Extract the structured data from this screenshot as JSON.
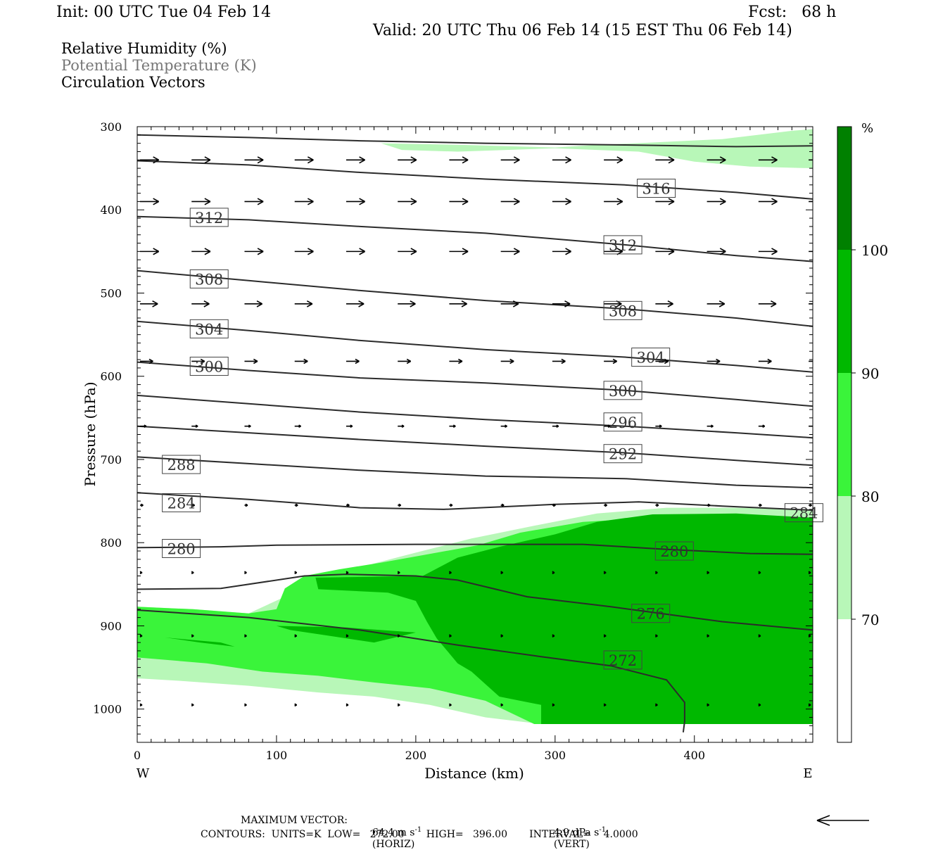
{
  "header": {
    "init": "Init: 00 UTC Tue 04 Feb 14",
    "fcst": "Fcst:   68 h",
    "valid": "Valid: 20 UTC Thu 06 Feb 14 (15 EST Thu 06 Feb 14)"
  },
  "fields": {
    "rh": "Relative Humidity (%)",
    "theta": "Potential Temperature (K)",
    "vectors": "Circulation Vectors"
  },
  "colors": {
    "rh_70_80": "#b8f7b8",
    "rh_80_90": "#3af43a",
    "rh_90_100": "#00b800",
    "rh_100": "#008000",
    "contour": "#2b2b2b"
  },
  "chart_data": {
    "type": "contour",
    "xlabel": "Distance (km)",
    "ylabel": "Pressure (hPa)",
    "xlim": [
      0,
      485
    ],
    "ylim": [
      300,
      1040
    ],
    "y_inverted": true,
    "x_ticks": [
      "0",
      "100",
      "200",
      "300",
      "400"
    ],
    "x_tick_values": [
      0,
      100,
      200,
      300,
      400
    ],
    "y_ticks": [
      "300",
      "400",
      "500",
      "600",
      "700",
      "800",
      "900",
      "1000"
    ],
    "y_tick_values": [
      300,
      400,
      500,
      600,
      700,
      800,
      900,
      1000
    ],
    "x_end_labels": {
      "west": "W",
      "east": "E"
    },
    "colorbar": {
      "unit": "%",
      "levels": [
        70,
        80,
        90,
        100
      ],
      "level_labels": [
        "70",
        "80",
        "90",
        "100"
      ]
    },
    "rh_regions": [
      {
        "level": "70-80",
        "points": [
          [
            175,
            320
          ],
          [
            235,
            322
          ],
          [
            300,
            325
          ],
          [
            330,
            322
          ],
          [
            370,
            319
          ],
          [
            420,
            315
          ],
          [
            470,
            305
          ],
          [
            485,
            303
          ],
          [
            485,
            350
          ],
          [
            440,
            348
          ],
          [
            400,
            342
          ],
          [
            360,
            330
          ],
          [
            300,
            326
          ],
          [
            230,
            330
          ],
          [
            190,
            328
          ]
        ]
      },
      {
        "level": "70-80",
        "points": [
          [
            0,
            877
          ],
          [
            40,
            880
          ],
          [
            80,
            885
          ],
          [
            110,
            862
          ],
          [
            140,
            840
          ],
          [
            170,
            825
          ],
          [
            200,
            812
          ],
          [
            240,
            795
          ],
          [
            290,
            778
          ],
          [
            330,
            765
          ],
          [
            380,
            758
          ],
          [
            430,
            758
          ],
          [
            485,
            760
          ],
          [
            485,
            1018
          ],
          [
            420,
            1018
          ],
          [
            360,
            1018
          ],
          [
            290,
            1018
          ],
          [
            250,
            1010
          ],
          [
            210,
            995
          ],
          [
            170,
            985
          ],
          [
            130,
            980
          ],
          [
            80,
            972
          ],
          [
            30,
            966
          ],
          [
            0,
            963
          ]
        ]
      },
      {
        "level": "80-90",
        "points": [
          [
            0,
            877
          ],
          [
            40,
            880
          ],
          [
            80,
            885
          ],
          [
            100,
            880
          ],
          [
            106,
            855
          ],
          [
            120,
            840
          ],
          [
            145,
            832
          ],
          [
            175,
            824
          ],
          [
            205,
            815
          ],
          [
            245,
            803
          ],
          [
            275,
            788
          ],
          [
            320,
            775
          ],
          [
            370,
            770
          ],
          [
            430,
            770
          ],
          [
            485,
            770
          ],
          [
            485,
            1018
          ],
          [
            410,
            1018
          ],
          [
            340,
            1018
          ],
          [
            285,
            1018
          ],
          [
            250,
            990
          ],
          [
            210,
            975
          ],
          [
            170,
            968
          ],
          [
            130,
            960
          ],
          [
            90,
            955
          ],
          [
            50,
            945
          ],
          [
            0,
            938
          ]
        ]
      },
      {
        "level": "90-100",
        "points": [
          [
            205,
            840
          ],
          [
            230,
            818
          ],
          [
            260,
            805
          ],
          [
            300,
            790
          ],
          [
            330,
            775
          ],
          [
            370,
            766
          ],
          [
            430,
            765
          ],
          [
            485,
            770
          ],
          [
            485,
            1018
          ],
          [
            420,
            1018
          ],
          [
            360,
            1018
          ],
          [
            300,
            1018
          ],
          [
            290,
            1018
          ],
          [
            290,
            995
          ],
          [
            260,
            985
          ],
          [
            250,
            970
          ],
          [
            240,
            955
          ],
          [
            230,
            945
          ],
          [
            215,
            915
          ],
          [
            208,
            895
          ],
          [
            200,
            870
          ],
          [
            180,
            860
          ],
          [
            130,
            856
          ],
          [
            128,
            842
          ]
        ]
      },
      {
        "level": "90-100",
        "points": [
          [
            100,
            900
          ],
          [
            150,
            902
          ],
          [
            175,
            905
          ],
          [
            200,
            908
          ],
          [
            170,
            920
          ],
          [
            130,
            910
          ],
          [
            110,
            905
          ]
        ]
      },
      {
        "level": "90-100",
        "points": [
          [
            20,
            914
          ],
          [
            60,
            920
          ],
          [
            70,
            925
          ],
          [
            45,
            920
          ]
        ]
      }
    ],
    "isentropes": [
      {
        "label": "272",
        "points": [
          [
            0,
            881
          ],
          [
            80,
            890
          ],
          [
            160,
            905
          ],
          [
            230,
            923
          ],
          [
            290,
            937
          ],
          [
            340,
            948
          ],
          [
            380,
            965
          ],
          [
            393,
            992
          ],
          [
            393,
            1015
          ],
          [
            392,
            1028
          ]
        ]
      },
      {
        "label": "276",
        "points": [
          [
            0,
            856
          ],
          [
            60,
            855
          ],
          [
            120,
            840
          ],
          [
            150,
            838
          ],
          [
            200,
            840
          ],
          [
            230,
            845
          ],
          [
            280,
            865
          ],
          [
            340,
            877
          ],
          [
            420,
            895
          ],
          [
            485,
            905
          ]
        ]
      },
      {
        "label": "280",
        "points": [
          [
            0,
            806
          ],
          [
            60,
            805
          ],
          [
            100,
            803
          ],
          [
            200,
            802
          ],
          [
            320,
            802
          ],
          [
            380,
            808
          ],
          [
            440,
            813
          ],
          [
            485,
            814
          ]
        ]
      },
      {
        "label": "284",
        "points": [
          [
            0,
            740
          ],
          [
            80,
            748
          ],
          [
            160,
            758
          ],
          [
            220,
            760
          ],
          [
            300,
            754
          ],
          [
            360,
            751
          ],
          [
            420,
            756
          ],
          [
            485,
            761
          ]
        ]
      },
      {
        "label": "288",
        "points": [
          [
            0,
            697
          ],
          [
            80,
            705
          ],
          [
            160,
            713
          ],
          [
            250,
            720
          ],
          [
            350,
            723
          ],
          [
            430,
            731
          ],
          [
            485,
            734
          ]
        ]
      },
      {
        "label": "292",
        "points": [
          [
            0,
            660
          ],
          [
            80,
            668
          ],
          [
            160,
            676
          ],
          [
            250,
            684
          ],
          [
            350,
            692
          ],
          [
            430,
            701
          ],
          [
            485,
            707
          ]
        ]
      },
      {
        "label": "296",
        "points": [
          [
            0,
            623
          ],
          [
            80,
            633
          ],
          [
            160,
            643
          ],
          [
            250,
            652
          ],
          [
            350,
            660
          ],
          [
            430,
            668
          ],
          [
            485,
            674
          ]
        ]
      },
      {
        "label": "300",
        "points": [
          [
            0,
            583
          ],
          [
            80,
            593
          ],
          [
            160,
            602
          ],
          [
            250,
            608
          ],
          [
            350,
            617
          ],
          [
            430,
            628
          ],
          [
            485,
            636
          ]
        ]
      },
      {
        "label": "304",
        "points": [
          [
            0,
            534
          ],
          [
            80,
            545
          ],
          [
            160,
            557
          ],
          [
            250,
            568
          ],
          [
            350,
            577
          ],
          [
            430,
            587
          ],
          [
            485,
            595
          ]
        ]
      },
      {
        "label": "308",
        "points": [
          [
            0,
            473
          ],
          [
            80,
            485
          ],
          [
            160,
            497
          ],
          [
            250,
            509
          ],
          [
            350,
            519
          ],
          [
            430,
            530
          ],
          [
            485,
            540
          ]
        ]
      },
      {
        "label": "312",
        "points": [
          [
            0,
            408
          ],
          [
            80,
            412
          ],
          [
            160,
            420
          ],
          [
            250,
            428
          ],
          [
            350,
            442
          ],
          [
            430,
            455
          ],
          [
            485,
            462
          ]
        ]
      },
      {
        "label": "316",
        "points": [
          [
            0,
            341
          ],
          [
            80,
            346
          ],
          [
            160,
            355
          ],
          [
            250,
            363
          ],
          [
            350,
            370
          ],
          [
            430,
            379
          ],
          [
            485,
            387
          ]
        ]
      },
      {
        "label": "",
        "points": [
          [
            0,
            310
          ],
          [
            80,
            313
          ],
          [
            160,
            317
          ],
          [
            250,
            320
          ],
          [
            350,
            322
          ],
          [
            430,
            324
          ],
          [
            485,
            323
          ]
        ]
      }
    ],
    "isentrope_labels": [
      {
        "text": "316",
        "x": 359,
        "p": 374
      },
      {
        "text": "312",
        "x": 38,
        "p": 409
      },
      {
        "text": "312",
        "x": 335,
        "p": 442
      },
      {
        "text": "308",
        "x": 38,
        "p": 483
      },
      {
        "text": "308",
        "x": 335,
        "p": 521
      },
      {
        "text": "304",
        "x": 38,
        "p": 543
      },
      {
        "text": "304",
        "x": 355,
        "p": 577
      },
      {
        "text": "300",
        "x": 38,
        "p": 588
      },
      {
        "text": "300",
        "x": 335,
        "p": 617
      },
      {
        "text": "296",
        "x": 335,
        "p": 655
      },
      {
        "text": "292",
        "x": 335,
        "p": 693
      },
      {
        "text": "288",
        "x": 18,
        "p": 706
      },
      {
        "text": "284",
        "x": 18,
        "p": 752
      },
      {
        "text": "284",
        "x": 465,
        "p": 764
      },
      {
        "text": "280",
        "x": 18,
        "p": 807
      },
      {
        "text": "280",
        "x": 372,
        "p": 810
      },
      {
        "text": "276",
        "x": 355,
        "p": 885
      },
      {
        "text": "272",
        "x": 335,
        "p": 941
      }
    ],
    "vectors": [
      {
        "p": 340,
        "x": [
          0,
          37,
          75,
          111,
          148,
          185,
          222,
          259,
          296,
          333,
          370,
          407,
          444,
          480
        ],
        "u": 0.36,
        "w": 0
      },
      {
        "p": 390,
        "x": [
          0,
          37,
          75,
          111,
          148,
          185,
          222,
          259,
          296,
          333,
          370,
          407,
          444,
          480
        ],
        "u": 0.36,
        "w": 0
      },
      {
        "p": 450,
        "x": [
          0,
          37,
          75,
          111,
          148,
          185,
          222,
          259,
          296,
          333,
          370,
          407,
          444,
          480
        ],
        "u": 0.36,
        "w": 0
      },
      {
        "p": 513,
        "x": [
          0,
          37,
          75,
          111,
          148,
          185,
          222,
          259,
          296,
          333,
          370,
          407,
          444,
          480
        ],
        "u": 0.34,
        "w": 0
      },
      {
        "p": 582,
        "x": [
          0,
          37,
          75,
          111,
          148,
          185,
          222,
          259,
          296,
          333,
          370,
          407,
          444,
          480
        ],
        "u": 0.25,
        "w": 0
      },
      {
        "p": 660,
        "x": [
          0,
          37,
          75,
          111,
          148,
          185,
          222,
          259,
          296,
          333,
          370,
          407,
          444,
          480
        ],
        "u": 0.12,
        "w": 0
      },
      {
        "p": 755,
        "x": [
          0,
          37,
          75,
          111,
          148,
          185,
          222,
          259,
          296,
          333,
          370,
          407,
          444,
          480
        ],
        "u": 0.06,
        "w": 0
      },
      {
        "p": 836,
        "x": [
          0,
          37,
          75,
          111,
          148,
          185,
          222,
          259,
          296,
          333,
          370,
          407,
          444,
          480
        ],
        "u": 0.04,
        "w": 0
      },
      {
        "p": 912,
        "x": [
          0,
          37,
          75,
          111,
          148,
          185,
          222,
          259,
          296,
          333,
          370,
          407,
          444,
          480
        ],
        "u": 0.02,
        "w": 0
      },
      {
        "p": 995,
        "x": [
          0,
          37,
          75,
          111,
          148,
          185,
          222,
          259,
          296,
          333,
          370,
          407,
          444,
          480
        ],
        "u": 0.02,
        "w": 0
      }
    ]
  },
  "footer": {
    "max_vector_label": "MAXIMUM VECTOR:",
    "horiz_value": "64.4 m s",
    "horiz_exp": "-1",
    "horiz_tag": "(HORIZ)",
    "vert_value": "4.9 dPa s",
    "vert_exp": "-1",
    "vert_tag": "(VERT)",
    "contours_line": "CONTOURS:  UNITS=K  LOW=   272.00       HIGH=   396.00       INTERVAL=    4.0000"
  }
}
